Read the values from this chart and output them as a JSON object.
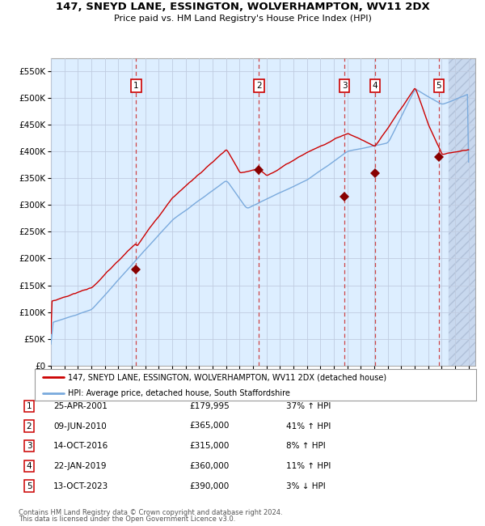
{
  "title": "147, SNEYD LANE, ESSINGTON, WOLVERHAMPTON, WV11 2DX",
  "subtitle": "Price paid vs. HM Land Registry's House Price Index (HPI)",
  "legend_line1": "147, SNEYD LANE, ESSINGTON, WOLVERHAMPTON, WV11 2DX (detached house)",
  "legend_line2": "HPI: Average price, detached house, South Staffordshire",
  "footer1": "Contains HM Land Registry data © Crown copyright and database right 2024.",
  "footer2": "This data is licensed under the Open Government Licence v3.0.",
  "sales": [
    {
      "num": 1,
      "date": "25-APR-2001",
      "price": 179995,
      "pct": "37%",
      "dir": "↑",
      "decimal_date": 2001.32
    },
    {
      "num": 2,
      "date": "09-JUN-2010",
      "price": 365000,
      "pct": "41%",
      "dir": "↑",
      "decimal_date": 2010.44
    },
    {
      "num": 3,
      "date": "14-OCT-2016",
      "price": 315000,
      "pct": "8%",
      "dir": "↑",
      "decimal_date": 2016.79
    },
    {
      "num": 4,
      "date": "22-JAN-2019",
      "price": 360000,
      "pct": "11%",
      "dir": "↑",
      "decimal_date": 2019.06
    },
    {
      "num": 5,
      "date": "13-OCT-2023",
      "price": 390000,
      "pct": "3%",
      "dir": "↓",
      "decimal_date": 2023.79
    }
  ],
  "xmin": 1995.0,
  "xmax": 2026.5,
  "ymin": 0,
  "ymax": 575000,
  "yticks": [
    0,
    50000,
    100000,
    150000,
    200000,
    250000,
    300000,
    350000,
    400000,
    450000,
    500000,
    550000
  ],
  "hpi_color": "#7aaadd",
  "price_color": "#cc0000",
  "sale_marker_color": "#880000",
  "dashed_line_color": "#cc3333",
  "background_color": "#ddeeff",
  "grid_color": "#c0cce0",
  "box_color": "#cc0000"
}
